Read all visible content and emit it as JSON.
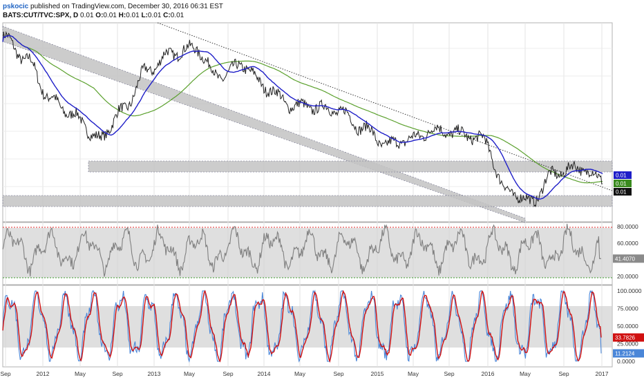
{
  "header": {
    "author": "pskocic",
    "published": "published on TradingView.com, December 30, 2016 06:31 EST",
    "symbol": "BATS:CUT/TVC:SPX, D",
    "ohlc": [
      {
        "k": "O:",
        "v": "0.01"
      },
      {
        "k": "H:",
        "v": "0.01"
      },
      {
        "k": "L:",
        "v": "0.01"
      },
      {
        "k": "C:",
        "v": "0.01"
      }
    ],
    "last": "0.01"
  },
  "x_axis": [
    "Sep",
    "2012",
    "May",
    "Sep",
    "2013",
    "May",
    "Sep",
    "2014",
    "May",
    "Sep",
    "2015",
    "May",
    "Sep",
    "2016",
    "May",
    "Sep",
    "2017"
  ],
  "price_tags": [
    {
      "label": "0.01",
      "color": "#1e1ec8"
    },
    {
      "label": "0.01",
      "color": "#3a8a1e"
    },
    {
      "label": "0.01",
      "color": "#111111"
    }
  ],
  "rsi_axis": [
    "80.0000",
    "60.0000",
    "40.0000",
    "20.0000"
  ],
  "rsi_last": "41.4070",
  "stoch_axis": [
    "100.0000",
    "75.0000",
    "50.0000",
    "25.0000",
    "0.0000"
  ],
  "stoch_tags": [
    {
      "label": "33.7826",
      "color": "#d01010"
    },
    {
      "label": "11.2124",
      "color": "#4a86d8"
    }
  ],
  "colors": {
    "price": "#222222",
    "ma_fast": "#1e1ec8",
    "ma_slow": "#5aa02c",
    "rsi": "#7f7f7f",
    "stoch_k": "#4a86d8",
    "stoch_d": "#d01010",
    "band": "#bdbdbd",
    "overbought": "#e02020",
    "oversold": "#3a9a2a"
  },
  "chart_data": [
    {
      "type": "line",
      "panel": "price",
      "series": [
        {
          "values": [
            1.0,
            0.8,
            0.45,
            0.3,
            0.1,
            0.35,
            0.7,
            0.85,
            0.9,
            0.65,
            0.75,
            0.55,
            0.4,
            0.38,
            0.35,
            0.2,
            0.05,
            0.1,
            0.18,
            0.15,
            0.1,
            -0.35,
            -0.45,
            -0.2,
            -0.15,
            -0.25
          ]
        },
        {},
        {}
      ],
      "levels": [
        "0.01",
        "0.01",
        "0.01"
      ]
    },
    {
      "type": "line",
      "panel": "rsi",
      "y_ticks": [
        80,
        60,
        40,
        20
      ],
      "ylim": [
        10,
        85
      ],
      "overbought": 80,
      "oversold": 20,
      "last": 41.407
    },
    {
      "type": "line",
      "panel": "stochastic",
      "y_ticks": [
        100,
        75,
        50,
        25,
        0
      ],
      "ylim": [
        -8,
        108
      ],
      "band": [
        20,
        80
      ],
      "series": [
        {
          "last": 11.2124
        },
        {
          "last": 33.7826
        }
      ]
    }
  ]
}
